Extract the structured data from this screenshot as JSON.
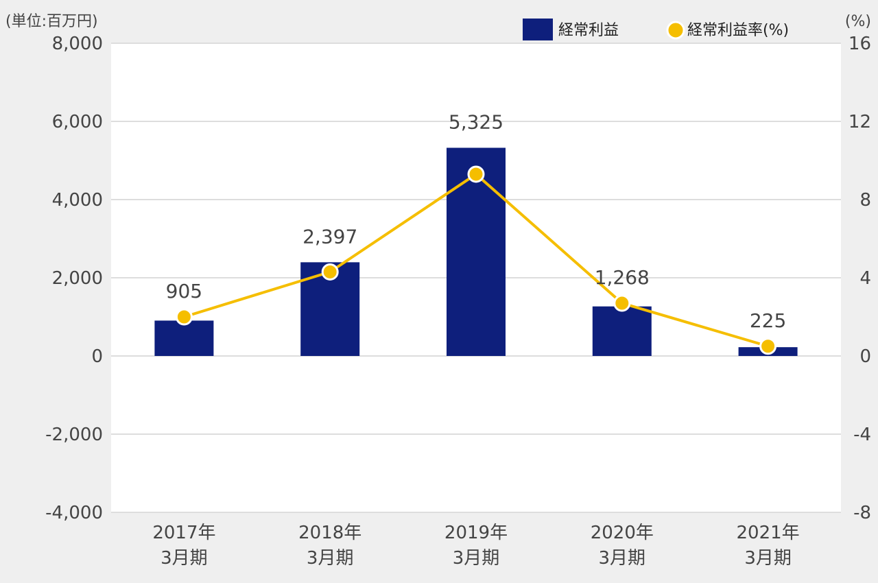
{
  "chart_data": {
    "type": "bar+line",
    "unit_label_left": "(単位:百万円)",
    "unit_label_right": "(%)",
    "categories": [
      [
        "2017年",
        "3月期"
      ],
      [
        "2018年",
        "3月期"
      ],
      [
        "2019年",
        "3月期"
      ],
      [
        "2020年",
        "3月期"
      ],
      [
        "2021年",
        "3月期"
      ]
    ],
    "series": [
      {
        "name": "経常利益",
        "type": "bar",
        "axis": "left",
        "values": [
          905,
          2397,
          5325,
          1268,
          225
        ],
        "labels": [
          "905",
          "2,397",
          "5,325",
          "1,268",
          "225"
        ]
      },
      {
        "name": "経常利益率(%)",
        "type": "line",
        "axis": "right",
        "values": [
          2.0,
          4.3,
          9.3,
          2.7,
          0.5
        ]
      }
    ],
    "y_left": {
      "range": [
        -4000,
        8000
      ],
      "ticks": [
        8000,
        6000,
        4000,
        2000,
        0,
        -2000,
        -4000
      ],
      "tick_labels": [
        "8,000",
        "6,000",
        "4,000",
        "2,000",
        "0",
        "-2,000",
        "-4,000"
      ]
    },
    "y_right": {
      "range": [
        -8,
        16
      ],
      "ticks": [
        16,
        12,
        8,
        4,
        0,
        -4,
        -8
      ],
      "tick_labels": [
        "16",
        "12",
        "8",
        "4",
        "0",
        "-4",
        "-8"
      ]
    },
    "grid": true,
    "legend_position": "top-right"
  },
  "colors": {
    "bar": "#0e1f7c",
    "line": "#f5be00",
    "grid": "#dddddd",
    "plot_bg": "#ffffff",
    "page_bg": "#efefef",
    "text": "#444444"
  }
}
